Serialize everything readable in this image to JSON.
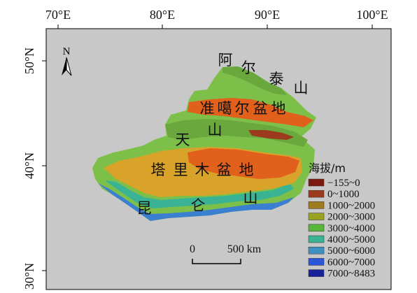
{
  "axes": {
    "top_labels": [
      "70°E",
      "80°E",
      "90°E",
      "100°E"
    ],
    "left_labels": [
      "50°N",
      "40°N",
      "30°N"
    ]
  },
  "north_arrow": {
    "label": "N",
    "icon": "north-arrow-icon"
  },
  "place_labels": {
    "altai": [
      "阿",
      "尔",
      "泰",
      "山"
    ],
    "junggar": [
      "准",
      "噶",
      "尔",
      "盆",
      "地"
    ],
    "tianshan": [
      "天",
      "山"
    ],
    "tarim": [
      "塔",
      "里",
      "木",
      "盆",
      "地"
    ],
    "kunlun": [
      "昆",
      "仑",
      "山"
    ]
  },
  "legend": {
    "title": "海拔/m",
    "items": [
      {
        "label": "−155~0",
        "color": "#7a1a10"
      },
      {
        "label": "0~1000",
        "color": "#9b3a1c"
      },
      {
        "label": "1000~2000",
        "color": "#a07a1e"
      },
      {
        "label": "2000~3000",
        "color": "#9aa21f"
      },
      {
        "label": "3000~4000",
        "color": "#58b63a"
      },
      {
        "label": "4000~5000",
        "color": "#3ab294"
      },
      {
        "label": "5000~6000",
        "color": "#3f8fc0"
      },
      {
        "label": "6000~7000",
        "color": "#2a55d8"
      },
      {
        "label": "7000~8483",
        "color": "#17229a"
      }
    ]
  },
  "scale_bar": {
    "start": "0",
    "end": "500 km"
  },
  "colors": {
    "basin_orange": "#e0601c",
    "basin_yellow": "#d8a328",
    "mountain_green": "#7cc04a",
    "high_blue": "#3a7fd0",
    "frame_bg": "#c9c9c9"
  }
}
